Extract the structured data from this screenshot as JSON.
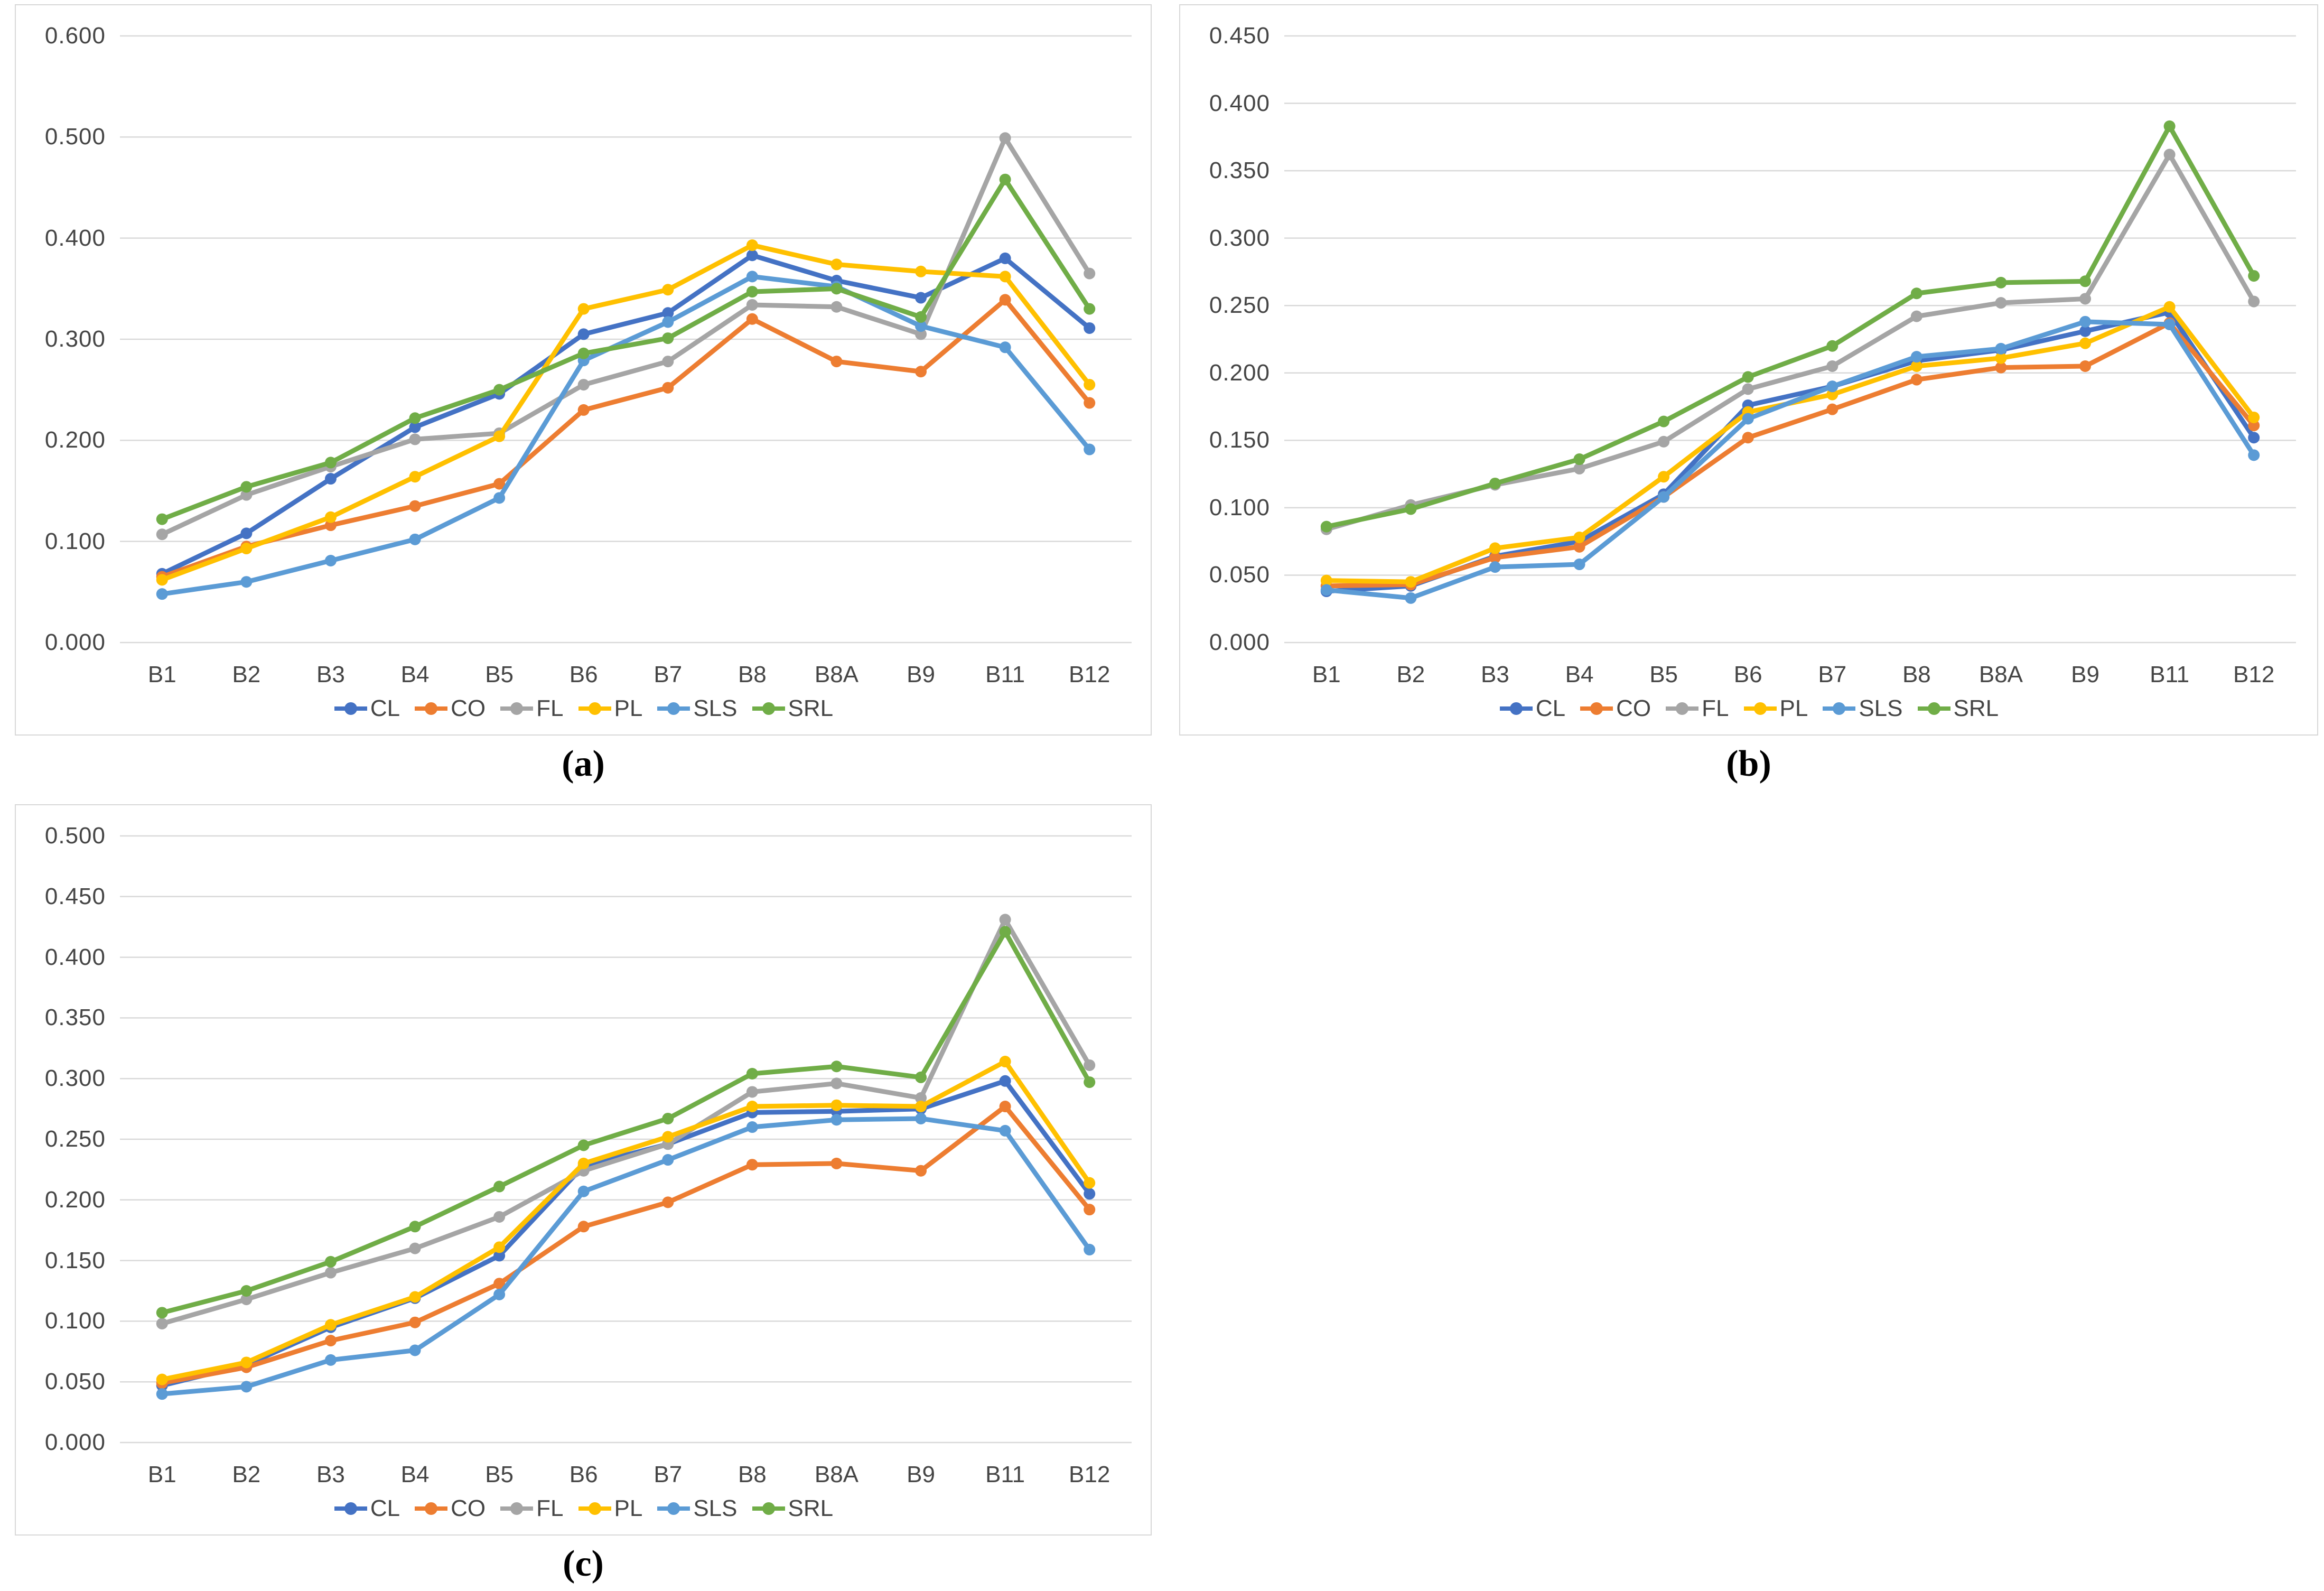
{
  "page": {
    "background": "#ffffff"
  },
  "colors": {
    "CL": "#4472C4",
    "CO": "#ED7D31",
    "FL": "#A5A5A5",
    "PL": "#FFC000",
    "SLS": "#5B9BD5",
    "SRL": "#70AD47",
    "gridline": "#D9D9D9",
    "axis_text": "#454545",
    "panel_border": "#D8D8D8"
  },
  "chart_data": [
    {
      "id": "a",
      "type": "line",
      "caption": "(a)",
      "title": "",
      "xlabel": "",
      "ylabel": "",
      "grid": true,
      "legend_position": "bottom",
      "categories": [
        "B1",
        "B2",
        "B3",
        "B4",
        "B5",
        "B6",
        "B7",
        "B8",
        "B8A",
        "B9",
        "B11",
        "B12"
      ],
      "ylim": [
        0.0,
        0.6
      ],
      "ytick_step": 0.1,
      "ytick_labels_top_to_bottom": [
        "0.600",
        "0.500",
        "0.400",
        "0.300",
        "0.200",
        "0.100",
        "0.000"
      ],
      "legend": [
        "CL",
        "CO",
        "FL",
        "PL",
        "SLS",
        "SRL"
      ],
      "series": [
        {
          "name": "CL",
          "color": "#4472C4",
          "values": [
            0.068,
            0.108,
            0.162,
            0.213,
            0.246,
            0.305,
            0.326,
            0.383,
            0.358,
            0.341,
            0.38,
            0.311
          ]
        },
        {
          "name": "CO",
          "color": "#ED7D31",
          "values": [
            0.065,
            0.095,
            0.116,
            0.135,
            0.157,
            0.23,
            0.252,
            0.32,
            0.278,
            0.268,
            0.339,
            0.237
          ]
        },
        {
          "name": "FL",
          "color": "#A5A5A5",
          "values": [
            0.107,
            0.146,
            0.174,
            0.201,
            0.207,
            0.255,
            0.278,
            0.334,
            0.332,
            0.305,
            0.499,
            0.365
          ]
        },
        {
          "name": "PL",
          "color": "#FFC000",
          "values": [
            0.062,
            0.093,
            0.124,
            0.164,
            0.204,
            0.33,
            0.349,
            0.393,
            0.374,
            0.367,
            0.362,
            0.255
          ]
        },
        {
          "name": "SLS",
          "color": "#5B9BD5",
          "values": [
            0.048,
            0.06,
            0.081,
            0.102,
            0.143,
            0.279,
            0.317,
            0.362,
            0.352,
            0.313,
            0.292,
            0.191
          ]
        },
        {
          "name": "SRL",
          "color": "#70AD47",
          "values": [
            0.122,
            0.154,
            0.178,
            0.222,
            0.25,
            0.286,
            0.301,
            0.347,
            0.35,
            0.322,
            0.458,
            0.33
          ]
        }
      ]
    },
    {
      "id": "b",
      "type": "line",
      "caption": "(b)",
      "title": "",
      "xlabel": "",
      "ylabel": "",
      "grid": true,
      "legend_position": "bottom",
      "categories": [
        "B1",
        "B2",
        "B3",
        "B4",
        "B5",
        "B6",
        "B7",
        "B8",
        "B8A",
        "B9",
        "B11",
        "B12"
      ],
      "ylim": [
        0.0,
        0.45
      ],
      "ytick_step": 0.05,
      "ytick_labels_top_to_bottom": [
        "0.450",
        "0.400",
        "0.350",
        "0.300",
        "0.250",
        "0.200",
        "0.150",
        "0.100",
        "0.050",
        "0.000"
      ],
      "legend": [
        "CL",
        "CO",
        "FL",
        "PL",
        "SLS",
        "SRL"
      ],
      "series": [
        {
          "name": "CL",
          "color": "#4472C4",
          "values": [
            0.038,
            0.042,
            0.064,
            0.075,
            0.11,
            0.176,
            0.19,
            0.209,
            0.217,
            0.231,
            0.245,
            0.152
          ]
        },
        {
          "name": "CO",
          "color": "#ED7D31",
          "values": [
            0.042,
            0.043,
            0.063,
            0.071,
            0.108,
            0.152,
            0.173,
            0.195,
            0.204,
            0.205,
            0.237,
            0.161
          ]
        },
        {
          "name": "FL",
          "color": "#A5A5A5",
          "values": [
            0.084,
            0.102,
            0.117,
            0.129,
            0.149,
            0.188,
            0.205,
            0.242,
            0.252,
            0.255,
            0.362,
            0.253
          ]
        },
        {
          "name": "PL",
          "color": "#FFC000",
          "values": [
            0.046,
            0.045,
            0.07,
            0.078,
            0.123,
            0.171,
            0.184,
            0.205,
            0.211,
            0.222,
            0.249,
            0.167
          ]
        },
        {
          "name": "SLS",
          "color": "#5B9BD5",
          "values": [
            0.039,
            0.033,
            0.056,
            0.058,
            0.108,
            0.166,
            0.19,
            0.212,
            0.218,
            0.238,
            0.236,
            0.139
          ]
        },
        {
          "name": "SRL",
          "color": "#70AD47",
          "values": [
            0.086,
            0.099,
            0.118,
            0.136,
            0.164,
            0.197,
            0.22,
            0.259,
            0.267,
            0.268,
            0.383,
            0.272
          ]
        }
      ]
    },
    {
      "id": "c",
      "type": "line",
      "caption": "(c)",
      "title": "",
      "xlabel": "",
      "ylabel": "",
      "grid": true,
      "legend_position": "bottom",
      "categories": [
        "B1",
        "B2",
        "B3",
        "B4",
        "B5",
        "B6",
        "B7",
        "B8",
        "B8A",
        "B9",
        "B11",
        "B12"
      ],
      "ylim": [
        0.0,
        0.5
      ],
      "ytick_step": 0.05,
      "ytick_labels_top_to_bottom": [
        "0.500",
        "0.450",
        "0.400",
        "0.350",
        "0.300",
        "0.250",
        "0.200",
        "0.150",
        "0.100",
        "0.050",
        "0.000"
      ],
      "legend": [
        "CL",
        "CO",
        "FL",
        "PL",
        "SLS",
        "SRL"
      ],
      "series": [
        {
          "name": "CL",
          "color": "#4472C4",
          "values": [
            0.047,
            0.064,
            0.095,
            0.119,
            0.154,
            0.228,
            0.246,
            0.272,
            0.273,
            0.275,
            0.298,
            0.205
          ]
        },
        {
          "name": "CO",
          "color": "#ED7D31",
          "values": [
            0.049,
            0.062,
            0.084,
            0.099,
            0.131,
            0.178,
            0.198,
            0.229,
            0.23,
            0.224,
            0.277,
            0.192
          ]
        },
        {
          "name": "FL",
          "color": "#A5A5A5",
          "values": [
            0.098,
            0.118,
            0.14,
            0.16,
            0.186,
            0.224,
            0.246,
            0.289,
            0.296,
            0.284,
            0.431,
            0.311
          ]
        },
        {
          "name": "PL",
          "color": "#FFC000",
          "values": [
            0.052,
            0.066,
            0.097,
            0.12,
            0.161,
            0.23,
            0.252,
            0.277,
            0.278,
            0.277,
            0.314,
            0.214
          ]
        },
        {
          "name": "SLS",
          "color": "#5B9BD5",
          "values": [
            0.04,
            0.046,
            0.068,
            0.076,
            0.122,
            0.207,
            0.233,
            0.26,
            0.266,
            0.267,
            0.257,
            0.159
          ]
        },
        {
          "name": "SRL",
          "color": "#70AD47",
          "values": [
            0.107,
            0.125,
            0.149,
            0.178,
            0.211,
            0.245,
            0.267,
            0.304,
            0.31,
            0.301,
            0.421,
            0.297
          ]
        }
      ]
    }
  ]
}
